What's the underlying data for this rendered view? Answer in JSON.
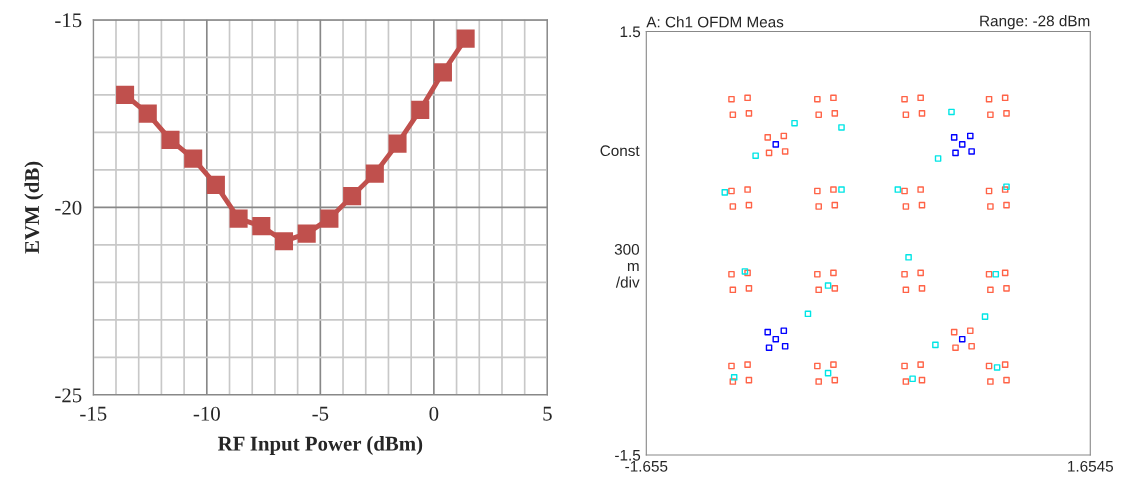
{
  "chart_data": [
    {
      "type": "line",
      "xlabel": "RF Input Power (dBm)",
      "ylabel": "EVM (dB)",
      "xlim": [
        -15,
        5
      ],
      "ylim": [
        -25,
        -15
      ],
      "xticks": [
        -15,
        -10,
        -5,
        0,
        5
      ],
      "yticks": [
        -25,
        -20,
        -15
      ],
      "grid": true,
      "marker": "square",
      "line_style": "solid",
      "series": [
        {
          "color": "#c0504d",
          "x": [
            -13.6,
            -12.6,
            -11.6,
            -10.6,
            -9.6,
            -8.6,
            -7.6,
            -6.6,
            -5.6,
            -4.6,
            -3.6,
            -2.6,
            -1.6,
            -0.6,
            0.4,
            1.4
          ],
          "values": [
            -17.0,
            -17.5,
            -18.2,
            -18.7,
            -19.4,
            -20.3,
            -20.5,
            -20.9,
            -20.7,
            -20.3,
            -19.7,
            -19.1,
            -18.3,
            -17.4,
            -16.4,
            -15.5
          ]
        }
      ]
    },
    {
      "type": "scatter",
      "title": "A: Ch1 OFDM Meas",
      "ylabel": "Const\n\n\n\n\n\n300\nm\n/div",
      "annotations": [
        "Range: -28 dBm"
      ],
      "xlim": [
        -1.655,
        1.6545
      ],
      "ylim": [
        -1.5,
        1.5
      ],
      "xticks": [
        -1.655,
        1.6545
      ],
      "yticks": [
        -1.5,
        1.5
      ],
      "grid": false,
      "marker": "square",
      "series": [
        {
          "color": "#ff6347",
          "x": [
            -1.02,
            -0.9,
            -1.01,
            -0.89,
            -0.38,
            -0.26,
            -0.37,
            -0.25,
            0.27,
            0.39,
            0.28,
            0.4,
            0.9,
            1.02,
            0.91,
            1.03,
            -1.02,
            -0.9,
            -1.01,
            -0.89,
            -0.38,
            -0.26,
            -0.37,
            -0.25,
            0.27,
            0.39,
            0.28,
            0.4,
            0.9,
            1.02,
            0.91,
            1.03,
            -1.02,
            -0.9,
            -1.01,
            -0.89,
            -0.38,
            -0.26,
            -0.37,
            -0.25,
            0.27,
            0.39,
            0.28,
            0.4,
            0.9,
            1.02,
            0.91,
            1.03,
            -1.02,
            -0.9,
            -1.01,
            -0.89,
            -0.38,
            -0.26,
            -0.37,
            -0.25,
            0.27,
            0.39,
            0.28,
            0.4,
            0.9,
            1.02,
            0.91,
            1.03,
            -0.75,
            -0.63,
            -0.74,
            -0.62,
            0.64,
            0.76,
            0.65,
            0.77
          ],
          "values": [
            1.02,
            1.03,
            0.91,
            0.92,
            1.02,
            1.03,
            0.91,
            0.92,
            1.02,
            1.03,
            0.91,
            0.92,
            1.02,
            1.03,
            0.91,
            0.92,
            0.37,
            0.38,
            0.26,
            0.27,
            0.37,
            0.38,
            0.26,
            0.27,
            0.37,
            0.38,
            0.26,
            0.27,
            0.37,
            0.38,
            0.26,
            0.27,
            -0.22,
            -0.21,
            -0.33,
            -0.32,
            -0.22,
            -0.21,
            -0.33,
            -0.32,
            -0.22,
            -0.21,
            -0.33,
            -0.32,
            -0.22,
            -0.21,
            -0.33,
            -0.32,
            -0.87,
            -0.86,
            -0.98,
            -0.97,
            -0.87,
            -0.86,
            -0.98,
            -0.97,
            -0.87,
            -0.86,
            -0.98,
            -0.97,
            -0.87,
            -0.86,
            -0.98,
            -0.97,
            0.75,
            0.76,
            0.64,
            0.65,
            -0.63,
            -0.62,
            -0.74,
            -0.73
          ]
        },
        {
          "color": "#00e5e5",
          "x": [
            -0.84,
            -0.55,
            -1.07,
            -0.2,
            0.22,
            0.52,
            1.03,
            -0.92,
            -0.3,
            0.3,
            0.95,
            -0.45,
            0.5,
            0.96,
            -1.0,
            0.33,
            -0.3,
            0.62,
            -0.2,
            0.87
          ],
          "values": [
            0.62,
            0.85,
            0.36,
            0.38,
            0.38,
            0.6,
            0.4,
            -0.2,
            -0.3,
            -0.1,
            -0.22,
            -0.5,
            -0.72,
            -0.88,
            -0.95,
            -0.96,
            -0.92,
            0.93,
            0.82,
            -0.52
          ]
        },
        {
          "color": "#0000ff",
          "x": [
            0.64,
            0.76,
            0.65,
            0.77,
            0.7,
            -0.75,
            -0.63,
            -0.74,
            -0.62,
            -0.69,
            -0.69,
            0.7
          ],
          "values": [
            0.75,
            0.76,
            0.64,
            0.65,
            0.7,
            -0.63,
            -0.62,
            -0.74,
            -0.73,
            -0.68,
            0.7,
            -0.68
          ]
        }
      ]
    }
  ]
}
